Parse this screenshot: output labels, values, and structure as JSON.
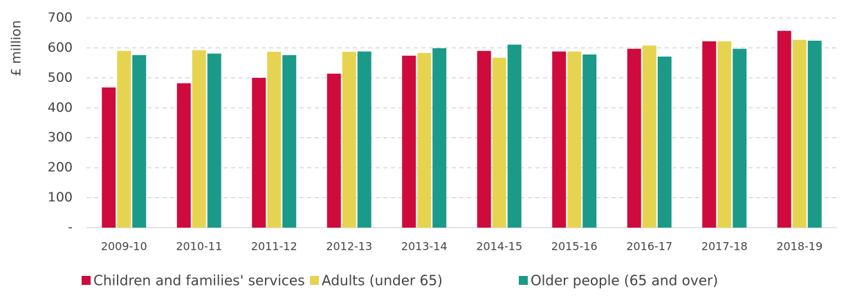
{
  "chart_data": {
    "type": "bar",
    "y_label": "£ million",
    "categories": [
      "2009-10",
      "2010-11",
      "2011-12",
      "2012-13",
      "2013-14",
      "2014-15",
      "2015-16",
      "2016-17",
      "2017-18",
      "2018-19"
    ],
    "series": [
      {
        "name": "Children and families' services",
        "color": "#cf0a3c",
        "values": [
          468,
          482,
          500,
          514,
          574,
          590,
          588,
          597,
          622,
          657
        ]
      },
      {
        "name": "Adults (under 65)",
        "color": "#e6d450",
        "values": [
          590,
          592,
          587,
          587,
          583,
          567,
          588,
          608,
          622,
          627
        ]
      },
      {
        "name": "Older people (65 and over)",
        "color": "#1b9a8a",
        "values": [
          576,
          581,
          576,
          588,
          599,
          611,
          578,
          571,
          597,
          624
        ]
      }
    ],
    "ylim": [
      0,
      700
    ],
    "yticks": [
      {
        "value": 0,
        "label": "-"
      },
      100,
      200,
      300,
      400,
      500,
      600,
      700
    ],
    "grid": true,
    "legend": "bottom"
  }
}
